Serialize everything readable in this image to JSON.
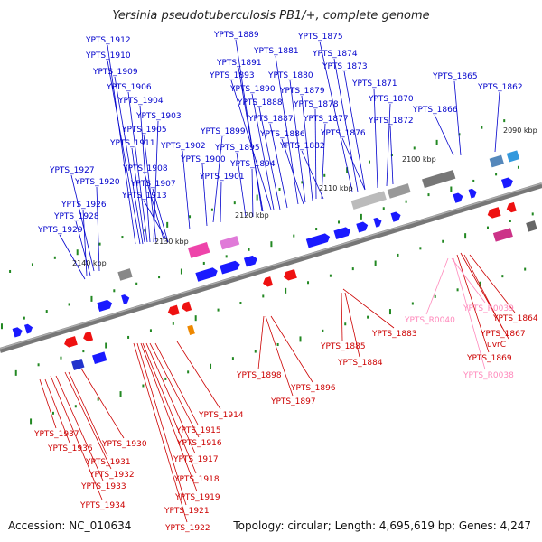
{
  "title": "Yersinia pseudotuberculosis PB1/+, complete genome",
  "footer": {
    "accession": "Accession: NC_010634",
    "stats": "Topology: circular; Length: 4,695,619 bp; Genes: 4,247"
  },
  "colors": {
    "forward_label": "#0000cc",
    "reverse_label": "#cc0000",
    "rna_label": "#ff88bb",
    "axis": "#777777",
    "tick": "#228822"
  },
  "scale_labels": [
    "2090 kbp",
    "2100 kbp",
    "2110 kbp",
    "2120 kbp",
    "2130 kbp",
    "2140 kbp"
  ],
  "forward_genes": [
    "YPTS_1912",
    "YPTS_1910",
    "YPTS_1909",
    "YPTS_1906",
    "YPTS_1904",
    "YPTS_1903",
    "YPTS_1905",
    "YPTS_1911",
    "YPTS_1908",
    "YPTS_1907",
    "YPTS_1913",
    "YPTS_1927",
    "YPTS_1920",
    "YPTS_1926",
    "YPTS_1928",
    "YPTS_1929",
    "YPTS_1899",
    "YPTS_1902",
    "YPTS_1900",
    "YPTS_1901",
    "YPTS_1889",
    "YPTS_1891",
    "YPTS_1893",
    "YPTS_1890",
    "YPTS_1888",
    "YPTS_1887",
    "YPTS_1886",
    "YPTS_1895",
    "YPTS_1894",
    "YPTS_1881",
    "YPTS_1880",
    "YPTS_1879",
    "YPTS_1878",
    "YPTS_1877",
    "YPTS_1882",
    "YPTS_1875",
    "YPTS_1874",
    "YPTS_1873",
    "YPTS_1871",
    "YPTS_1870",
    "YPTS_1876",
    "YPTS_1872",
    "YPTS_1865",
    "YPTS_1862",
    "YPTS_1866"
  ],
  "reverse_genes": [
    "YPTS_1898",
    "YPTS_1896",
    "YPTS_1897",
    "YPTS_1885",
    "YPTS_1884",
    "YPTS_1883",
    "YPTS_1864",
    "YPTS_1867",
    "uvrC",
    "YPTS_1869",
    "YPTS_1914",
    "YPTS_1915",
    "YPTS_1916",
    "YPTS_1917",
    "YPTS_1918",
    "YPTS_1919",
    "YPTS_1921",
    "YPTS_1922",
    "YPTS_1937",
    "YPTS_1936",
    "YPTS_1930",
    "YPTS_1931",
    "YPTS_1932",
    "YPTS_1933",
    "YPTS_1934"
  ],
  "rna_genes": [
    "YPTS_R0040",
    "YPTS_R0039",
    "YPTS_R0038"
  ]
}
